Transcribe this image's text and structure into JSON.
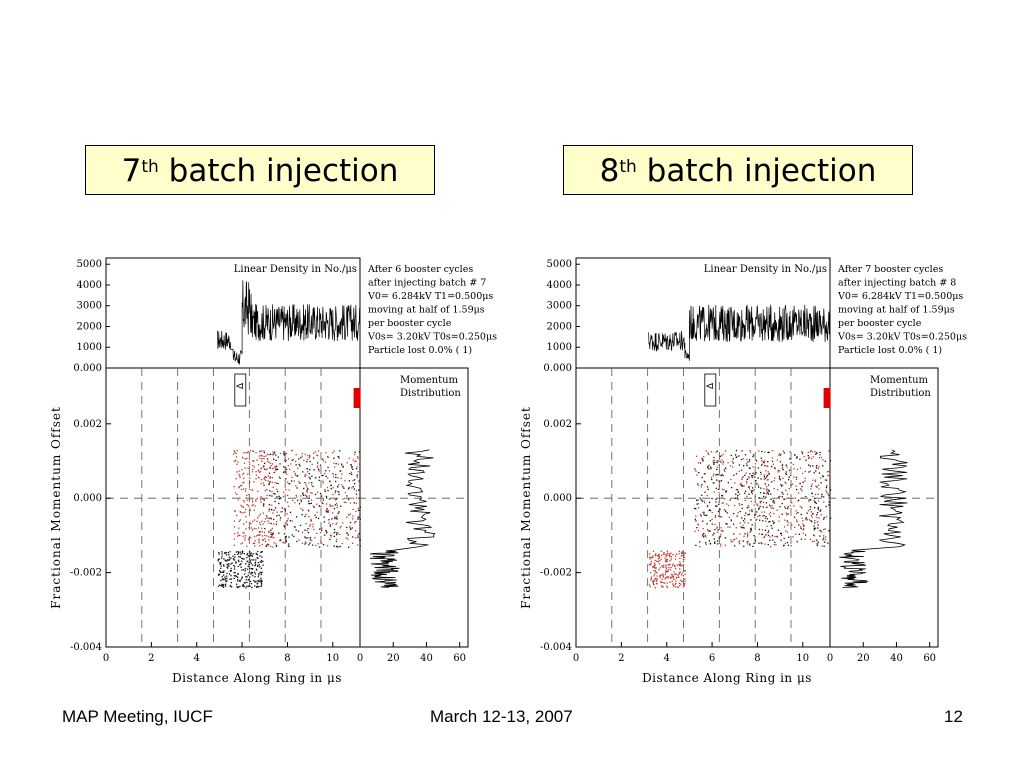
{
  "slide": {
    "titles": [
      {
        "num": "7",
        "sup": "th",
        "text": "batch injection"
      },
      {
        "num": "8",
        "sup": "th",
        "text": "batch injection"
      }
    ],
    "footer": {
      "left": "MAP Meeting, IUCF",
      "center": "March 12-13, 2007",
      "right": "12"
    }
  },
  "chart_data": [
    {
      "type": "scatter",
      "density_title": "Linear Density in No./μs",
      "momentum_title": [
        "Momentum",
        "Distribution"
      ],
      "info": [
        "After  6 booster cycles",
        "after injecting batch #  7",
        "V0= 6.284kV T1=0.500μs",
        "moving at half of 1.59μs",
        "per booster cycle",
        "V0s= 3.20kV T0s=0.250μs",
        "Particle lost  0.0% (    1)"
      ],
      "xlabel": "Distance Along Ring in μs",
      "ylabel": "Fractional Momentum Offset",
      "momentum_xticks": [
        "0",
        "20",
        "40",
        "60"
      ],
      "xticks": [
        "0",
        "2",
        "4",
        "6",
        "8",
        "10"
      ],
      "yticks": [
        "0.002",
        "0.000",
        "-0.002",
        "-0.004"
      ],
      "density_yticks": [
        "5000",
        "4000",
        "3000",
        "2000",
        "1000",
        "0.000"
      ],
      "xlim": [
        0,
        11.2
      ],
      "ylim": [
        -0.004,
        0.0035
      ],
      "density_ylim": [
        0,
        5300
      ],
      "dashed_x": [
        1.58,
        3.16,
        4.74,
        6.32,
        7.9,
        9.48
      ],
      "marker_x": 5.9,
      "marker_label": "Δ",
      "rf_marker_x": 11.05,
      "density": [
        {
          "x0": 4.9,
          "x1": 5.5,
          "mean": 1350,
          "amp": 500
        },
        {
          "x0": 5.6,
          "x1": 6.0,
          "mean": 500,
          "amp": 400
        },
        {
          "x0": 6.0,
          "x1": 6.4,
          "mean": 2900,
          "amp": 1400
        },
        {
          "x0": 6.4,
          "x1": 11.2,
          "mean": 2200,
          "amp": 900
        }
      ],
      "bunches": [
        {
          "x0": 4.9,
          "x1": 6.9,
          "y0": -0.0024,
          "y1": -0.0014,
          "color": "black"
        },
        {
          "x0": 6.9,
          "x1": 11.2,
          "y0": -0.0013,
          "y1": 0.0013,
          "color": "mixed"
        },
        {
          "x0": 5.6,
          "x1": 7.2,
          "y0": -0.0013,
          "y1": 0.0013,
          "color": "red"
        }
      ],
      "momentum": [
        {
          "y0": -0.0024,
          "y1": -0.0014,
          "mean": 15
        },
        {
          "y0": -0.0013,
          "y1": 0.0013,
          "mean": 36
        }
      ]
    },
    {
      "type": "scatter",
      "density_title": "Linear Density in No./μs",
      "momentum_title": [
        "Momentum",
        "Distribution"
      ],
      "info": [
        "After  7 booster cycles",
        "after injecting batch #  8",
        "V0= 6.284kV T1=0.500μs",
        "moving at half of 1.59μs",
        "per booster cycle",
        "V0s= 3.20kV T0s=0.250μs",
        "Particle lost  0.0% (    1)"
      ],
      "xlabel": "Distance Along Ring in μs",
      "ylabel": "Fractional Momentum Offset",
      "momentum_xticks": [
        "0",
        "20",
        "40",
        "60"
      ],
      "xticks": [
        "0",
        "2",
        "4",
        "6",
        "8",
        "10"
      ],
      "yticks": [
        "0.002",
        "0.000",
        "-0.002",
        "-0.004"
      ],
      "density_yticks": [
        "5000",
        "4000",
        "3000",
        "2000",
        "1000",
        "0.000"
      ],
      "xlim": [
        0,
        11.2
      ],
      "ylim": [
        -0.004,
        0.0035
      ],
      "density_ylim": [
        0,
        5300
      ],
      "dashed_x": [
        1.58,
        3.16,
        4.74,
        6.32,
        7.9,
        9.48
      ],
      "marker_x": 5.9,
      "marker_label": "Δ",
      "rf_marker_x": 11.05,
      "density": [
        {
          "x0": 3.2,
          "x1": 4.8,
          "mean": 1300,
          "amp": 500
        },
        {
          "x0": 4.8,
          "x1": 5.0,
          "mean": 600,
          "amp": 300
        },
        {
          "x0": 5.0,
          "x1": 11.2,
          "mean": 2150,
          "amp": 900
        }
      ],
      "bunches": [
        {
          "x0": 3.2,
          "x1": 4.8,
          "y0": -0.0024,
          "y1": -0.0014,
          "color": "red"
        },
        {
          "x0": 5.2,
          "x1": 11.2,
          "y0": -0.0013,
          "y1": 0.0013,
          "color": "mixed"
        }
      ],
      "momentum": [
        {
          "y0": -0.0024,
          "y1": -0.0014,
          "mean": 14
        },
        {
          "y0": -0.0013,
          "y1": 0.0013,
          "mean": 38
        }
      ]
    }
  ]
}
